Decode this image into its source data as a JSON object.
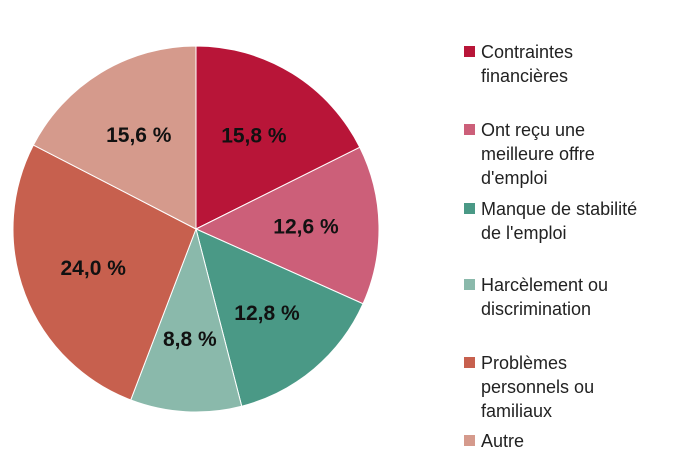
{
  "chart_data": {
    "type": "pie",
    "title": "",
    "start_angle_deg": 0,
    "direction": "clockwise",
    "slices": [
      {
        "label": "Contraintes financières",
        "value": 15.8,
        "display": "15,8 %",
        "color": "#B81538"
      },
      {
        "label": "Ont reçu une meilleure offre d'emploi",
        "value": 12.6,
        "display": "12,6 %",
        "color": "#CC5F79"
      },
      {
        "label": "Manque de stabilité de l'emploi",
        "value": 12.8,
        "display": "12,8 %",
        "color": "#4A9986"
      },
      {
        "label": "Harcèlement ou discrimination",
        "value": 8.8,
        "display": "8,8 %",
        "color": "#8AB9AB"
      },
      {
        "label": "Problèmes personnels ou familiaux",
        "value": 24.0,
        "display": "24,0 %",
        "color": "#C7604E"
      },
      {
        "label": "Autre",
        "value": 15.6,
        "display": "15,6 %",
        "color": "#D59A8C"
      }
    ],
    "legend_position": "right"
  },
  "legend": {
    "items": [
      {
        "lines": [
          "Contraintes",
          "financières"
        ]
      },
      {
        "lines": [
          "Ont reçu une",
          "meilleure offre",
          "d'emploi"
        ]
      },
      {
        "lines": [
          "Manque de stabilité",
          "de l'emploi"
        ]
      },
      {
        "lines": [
          "Harcèlement ou",
          "discrimination"
        ]
      },
      {
        "lines": [
          "Problèmes",
          "personnels ou",
          "familiaux"
        ]
      },
      {
        "lines": [
          "Autre"
        ]
      }
    ]
  }
}
